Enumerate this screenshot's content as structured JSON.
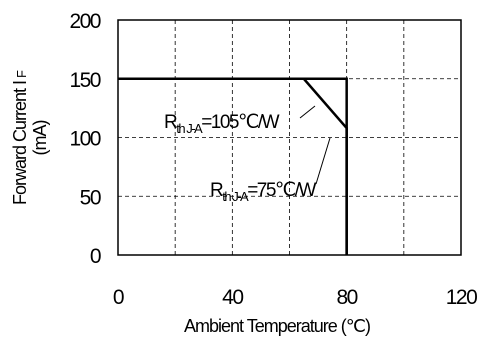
{
  "chart_data": {
    "type": "line",
    "xlabel": "Ambient Temperature (℃)",
    "ylabel_line1": "Forward Current I",
    "ylabel_sub": "F",
    "ylabel_line2": "(mA)",
    "xlim": [
      0,
      120
    ],
    "ylim": [
      0,
      200
    ],
    "xticks": [
      0,
      40,
      80,
      120
    ],
    "yticks": [
      0,
      50,
      100,
      150,
      200
    ],
    "grid": true,
    "series": [
      {
        "label_main": "R",
        "label_sub": "th J-A",
        "label_value": "=105℃/W",
        "points": [
          [
            0,
            150
          ],
          [
            65,
            150
          ],
          [
            80,
            108
          ],
          [
            80,
            0
          ]
        ]
      },
      {
        "label_main": "R",
        "label_sub": "th J-A",
        "label_value": "=75℃/W",
        "points": [
          [
            0,
            150
          ],
          [
            80,
            150
          ],
          [
            80,
            0
          ]
        ]
      }
    ]
  }
}
